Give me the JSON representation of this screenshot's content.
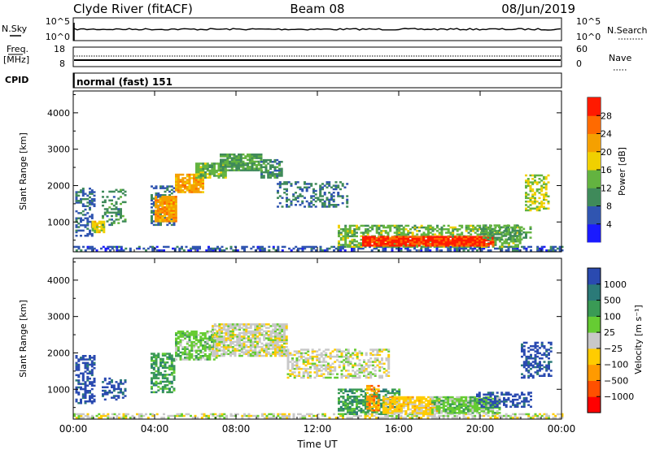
{
  "header": {
    "station": "Clyde River (fitACF)",
    "beam": "Beam 08",
    "date": "08/Jun/2019"
  },
  "noise_panel": {
    "left_label": "N.Sky",
    "right_label": "N.Search",
    "tick_top": "10^5",
    "tick_bottom": "10^0",
    "right_tick_top": "10^5",
    "right_tick_bottom": "10^0"
  },
  "freq_panel": {
    "left_label_1": "Freq.",
    "left_label_2": "[MHz]",
    "left_tick_top": "18",
    "left_tick_bottom": "8",
    "right_label": "Nave",
    "right_tick_top": "60",
    "right_tick_bottom": "0"
  },
  "cpid_panel": {
    "label": "CPID",
    "mode_text": "normal (fast) 151"
  },
  "colors": {
    "power": [
      "#1a1aff",
      "#3055b0",
      "#3f8a5a",
      "#63b340",
      "#f0d000",
      "#f5a000",
      "#ff6a00",
      "#ff1a00"
    ],
    "velocity": [
      "#ff0000",
      "#ff5000",
      "#ff9a00",
      "#ffcc00",
      "#c8c8c8",
      "#66cc33",
      "#3a9a55",
      "#2b7a78",
      "#2a4ab0"
    ],
    "ground_scatter": "#c0c0c0"
  },
  "chart_data": [
    {
      "type": "heatmap",
      "name": "power-panel",
      "xlabel": "",
      "ylabel": "Slant Range [km]",
      "x_ticks": [
        "00:00",
        "04:00",
        "08:00",
        "12:00",
        "16:00",
        "20:00",
        "00:00"
      ],
      "y_ticks": [
        "1000",
        "2000",
        "3000",
        "4000"
      ],
      "xlim_hours": [
        0,
        24
      ],
      "ylim_km": [
        180,
        4600
      ],
      "colorbar_label": "Power [dB]",
      "colorbar_ticks": [
        "4",
        "8",
        "12",
        "16",
        "20",
        "24",
        "28"
      ],
      "colorbar_range": [
        0,
        32
      ],
      "regions": [
        {
          "t0": 0.0,
          "t1": 24.0,
          "r0": 200,
          "r1": 330,
          "v": 6,
          "d": 0.55
        },
        {
          "t0": 0.1,
          "t1": 1.0,
          "r0": 600,
          "r1": 1900,
          "v": 7,
          "d": 0.45
        },
        {
          "t0": 0.9,
          "t1": 1.5,
          "r0": 700,
          "r1": 1000,
          "v": 18,
          "d": 0.85
        },
        {
          "t0": 1.4,
          "t1": 2.6,
          "r0": 900,
          "r1": 1900,
          "v": 10,
          "d": 0.4
        },
        {
          "t0": 3.8,
          "t1": 5.0,
          "r0": 900,
          "r1": 2000,
          "v": 8,
          "d": 0.5
        },
        {
          "t0": 4.0,
          "t1": 5.0,
          "r0": 1000,
          "r1": 1700,
          "v": 22,
          "d": 0.9
        },
        {
          "t0": 5.0,
          "t1": 6.4,
          "r0": 1800,
          "r1": 2300,
          "v": 22,
          "d": 0.85
        },
        {
          "t0": 6.0,
          "t1": 7.5,
          "r0": 2200,
          "r1": 2600,
          "v": 14,
          "d": 0.8
        },
        {
          "t0": 7.2,
          "t1": 9.2,
          "r0": 2400,
          "r1": 2850,
          "v": 12,
          "d": 0.85
        },
        {
          "t0": 9.2,
          "t1": 10.2,
          "r0": 2200,
          "r1": 2700,
          "v": 10,
          "d": 0.7
        },
        {
          "t0": 10.0,
          "t1": 13.5,
          "r0": 1400,
          "r1": 2100,
          "v": 8,
          "d": 0.35
        },
        {
          "t0": 13.0,
          "t1": 22.0,
          "r0": 300,
          "r1": 900,
          "v": 14,
          "d": 0.6
        },
        {
          "t0": 14.2,
          "t1": 20.6,
          "r0": 330,
          "r1": 600,
          "v": 29,
          "d": 0.95
        },
        {
          "t0": 20.0,
          "t1": 22.5,
          "r0": 500,
          "r1": 900,
          "v": 12,
          "d": 0.5
        },
        {
          "t0": 22.2,
          "t1": 23.4,
          "r0": 1300,
          "r1": 2300,
          "v": 16,
          "d": 0.5
        }
      ]
    },
    {
      "type": "heatmap",
      "name": "velocity-panel",
      "xlabel": "Time UT",
      "ylabel": "Slant Range [km]",
      "x_ticks": [
        "00:00",
        "04:00",
        "08:00",
        "12:00",
        "16:00",
        "20:00",
        "00:00"
      ],
      "y_ticks": [
        "1000",
        "2000",
        "3000",
        "4000"
      ],
      "xlim_hours": [
        0,
        24
      ],
      "ylim_km": [
        180,
        4600
      ],
      "colorbar_label": "Velocity [m s⁻¹]",
      "colorbar_ticks": [
        "1000",
        "500",
        "100",
        "25",
        "−25",
        "−100",
        "−500",
        "−1000"
      ],
      "regions": [
        {
          "t0": 0.0,
          "t1": 24.0,
          "r0": 200,
          "r1": 330,
          "v": 4,
          "d": 0.55
        },
        {
          "t0": 0.1,
          "t1": 1.0,
          "r0": 600,
          "r1": 1900,
          "v": 8,
          "d": 0.5
        },
        {
          "t0": 1.4,
          "t1": 2.6,
          "r0": 700,
          "r1": 1300,
          "v": 8,
          "d": 0.45
        },
        {
          "t0": 3.8,
          "t1": 5.0,
          "r0": 900,
          "r1": 2000,
          "v": 6,
          "d": 0.6
        },
        {
          "t0": 5.0,
          "t1": 7.0,
          "r0": 1800,
          "r1": 2600,
          "v": 5,
          "d": 0.7
        },
        {
          "t0": 6.8,
          "t1": 10.5,
          "r0": 1900,
          "r1": 2800,
          "v": 4,
          "d": 0.75
        },
        {
          "t0": 10.5,
          "t1": 15.5,
          "r0": 1300,
          "r1": 2100,
          "v": 4,
          "d": 0.5
        },
        {
          "t0": 13.0,
          "t1": 16.0,
          "r0": 300,
          "r1": 1000,
          "v": 6,
          "d": 0.55
        },
        {
          "t0": 14.4,
          "t1": 15.0,
          "r0": 400,
          "r1": 1100,
          "v": 2,
          "d": 0.7
        },
        {
          "t0": 15.2,
          "t1": 18.0,
          "r0": 330,
          "r1": 800,
          "v": 3,
          "d": 0.85
        },
        {
          "t0": 17.6,
          "t1": 21.0,
          "r0": 330,
          "r1": 800,
          "v": 5,
          "d": 0.85
        },
        {
          "t0": 19.8,
          "t1": 22.5,
          "r0": 500,
          "r1": 900,
          "v": 8,
          "d": 0.5
        },
        {
          "t0": 22.0,
          "t1": 23.5,
          "r0": 1300,
          "r1": 2300,
          "v": 8,
          "d": 0.5
        }
      ]
    }
  ]
}
